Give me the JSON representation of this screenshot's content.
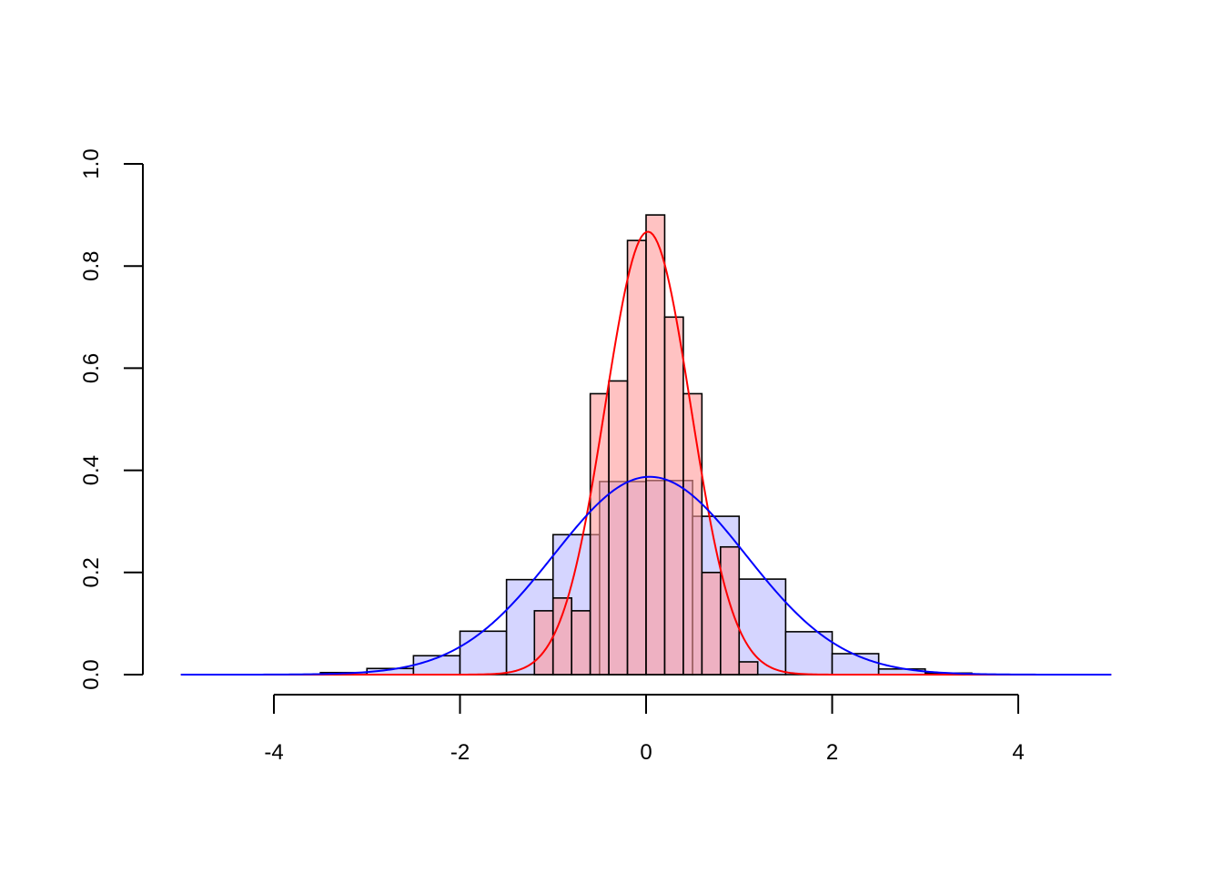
{
  "chart_data": {
    "type": "bar",
    "title": "",
    "xlabel": "",
    "ylabel": "",
    "xlim": [
      -5,
      5
    ],
    "ylim": [
      0,
      1.0
    ],
    "x_ticks": [
      "-4",
      "-2",
      "0",
      "2",
      "4"
    ],
    "y_ticks": [
      "0.0",
      "0.2",
      "0.4",
      "0.6",
      "0.8",
      "1.0"
    ],
    "grid": false,
    "legend": "none",
    "series": [
      {
        "kind": "histogram",
        "fill": "#D5D5FF",
        "bins": [
          {
            "x0": -3.5,
            "x1": -3.0,
            "y": 0.004
          },
          {
            "x0": -3.0,
            "x1": -2.5,
            "y": 0.012
          },
          {
            "x0": -2.5,
            "x1": -2.0,
            "y": 0.037
          },
          {
            "x0": -2.0,
            "x1": -1.5,
            "y": 0.085
          },
          {
            "x0": -1.5,
            "x1": -1.0,
            "y": 0.186
          },
          {
            "x0": -1.0,
            "x1": -0.5,
            "y": 0.274
          },
          {
            "x0": -0.5,
            "x1": 0.0,
            "y": 0.378
          },
          {
            "x0": 0.0,
            "x1": 0.5,
            "y": 0.38
          },
          {
            "x0": 0.5,
            "x1": 1.0,
            "y": 0.31
          },
          {
            "x0": 1.0,
            "x1": 1.5,
            "y": 0.187
          },
          {
            "x0": 1.5,
            "x1": 2.0,
            "y": 0.084
          },
          {
            "x0": 2.0,
            "x1": 2.5,
            "y": 0.041
          },
          {
            "x0": 2.5,
            "x1": 3.0,
            "y": 0.011
          },
          {
            "x0": 3.0,
            "x1": 3.5,
            "y": 0.003
          }
        ]
      },
      {
        "kind": "histogram",
        "fill": "#FF9999",
        "opacity": 0.6,
        "bins": [
          {
            "x0": -1.2,
            "x1": -1.0,
            "y": 0.125
          },
          {
            "x0": -1.0,
            "x1": -0.8,
            "y": 0.15
          },
          {
            "x0": -0.8,
            "x1": -0.6,
            "y": 0.125
          },
          {
            "x0": -0.6,
            "x1": -0.4,
            "y": 0.55
          },
          {
            "x0": -0.4,
            "x1": -0.2,
            "y": 0.575
          },
          {
            "x0": -0.2,
            "x1": 0.0,
            "y": 0.85
          },
          {
            "x0": 0.0,
            "x1": 0.2,
            "y": 0.9
          },
          {
            "x0": 0.2,
            "x1": 0.4,
            "y": 0.7
          },
          {
            "x0": 0.4,
            "x1": 0.6,
            "y": 0.55
          },
          {
            "x0": 0.6,
            "x1": 0.8,
            "y": 0.2
          },
          {
            "x0": 0.8,
            "x1": 1.0,
            "y": 0.25
          },
          {
            "x0": 1.0,
            "x1": 1.2,
            "y": 0.025
          }
        ]
      },
      {
        "kind": "density-line",
        "color": "#FF0000",
        "mean": 0.02,
        "sd": 0.46
      },
      {
        "kind": "density-line",
        "color": "#0000FF",
        "mean": 0.04,
        "sd": 1.03
      }
    ]
  }
}
